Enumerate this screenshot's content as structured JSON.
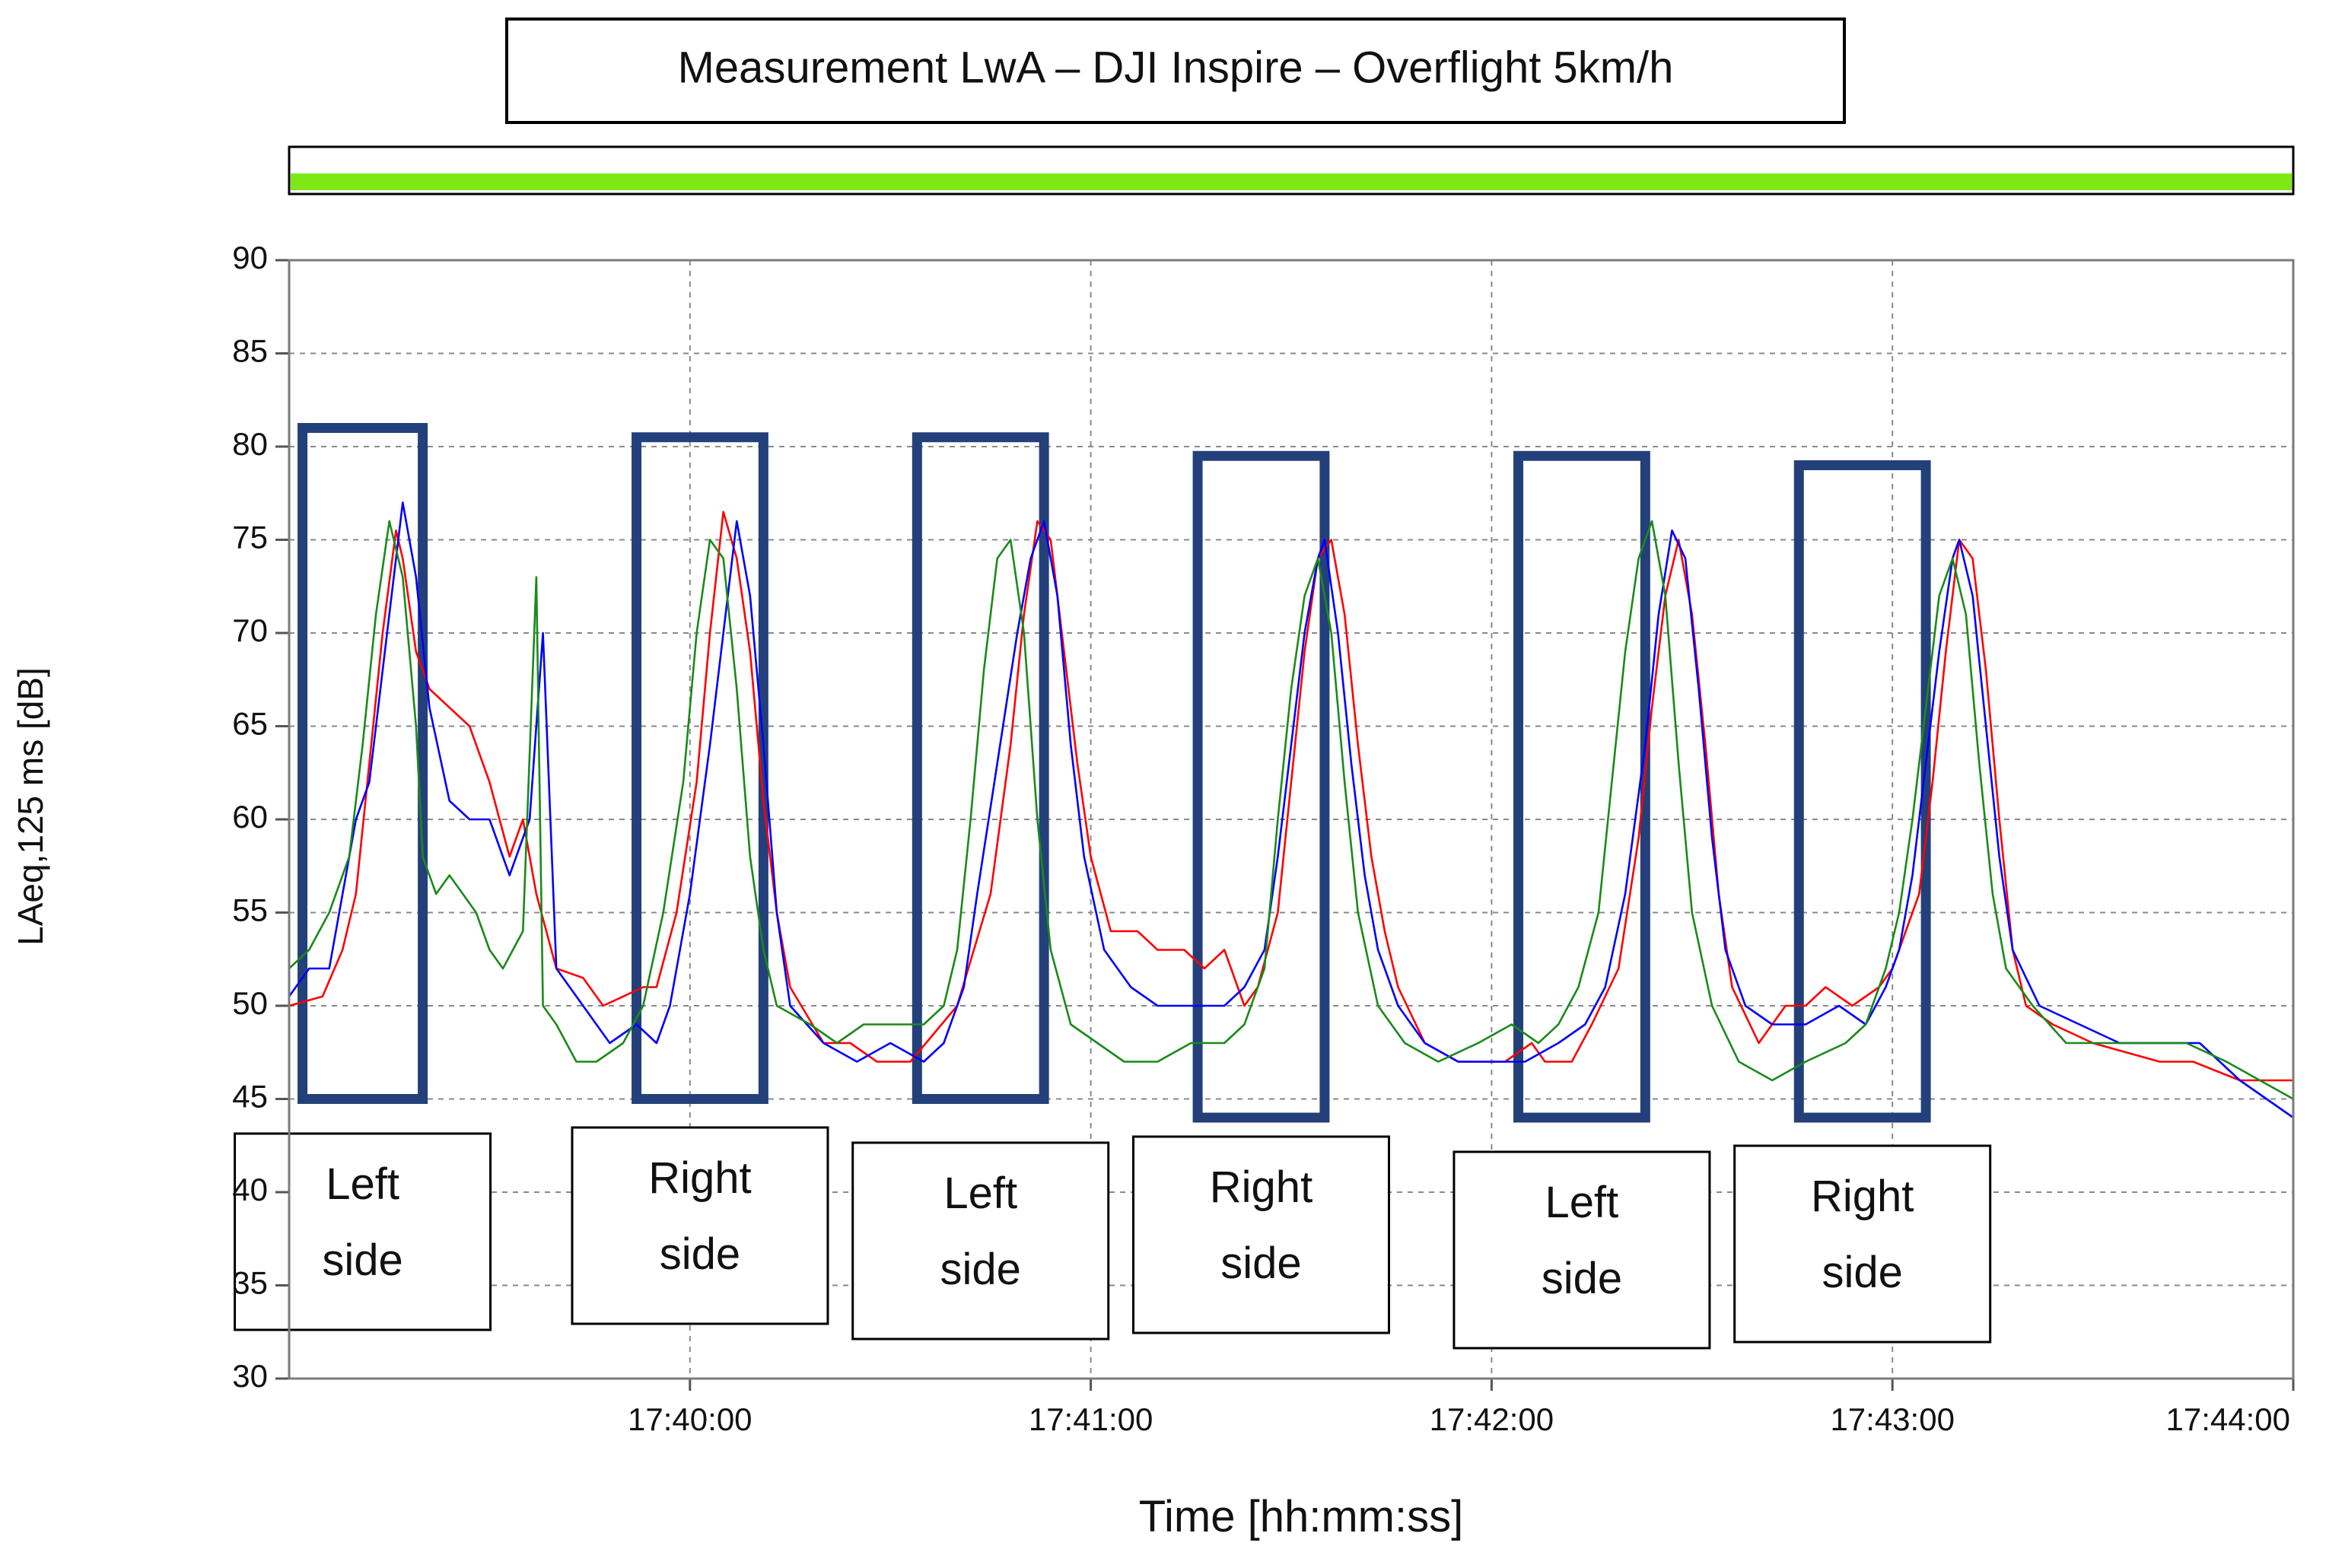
{
  "chart_data": {
    "type": "line",
    "title": "Measurement LwA – DJI Inspire – Overflight 5km/h",
    "xlabel": "Time [hh:mm:ss]",
    "ylabel": "LAeq,125 ms [dB]",
    "ylim": [
      30,
      90
    ],
    "xlim": [
      "17:39:00",
      "17:44:00"
    ],
    "x_ticks": [
      "17:40:00",
      "17:41:00",
      "17:42:00",
      "17:43:00",
      "17:44:00"
    ],
    "y_ticks": [
      30,
      35,
      40,
      45,
      50,
      55,
      60,
      65,
      70,
      75,
      80,
      85,
      90
    ],
    "grid": true,
    "status_bar": {
      "color": "#7ee817"
    },
    "series": [
      {
        "name": "red",
        "color": "#ff0000",
        "points": [
          [
            0,
            50
          ],
          [
            5,
            50.5
          ],
          [
            8,
            53
          ],
          [
            10,
            56
          ],
          [
            12,
            63
          ],
          [
            14,
            70
          ],
          [
            16,
            75.5
          ],
          [
            17,
            74
          ],
          [
            19,
            69
          ],
          [
            21,
            67
          ],
          [
            24,
            66
          ],
          [
            27,
            65
          ],
          [
            30,
            62
          ],
          [
            33,
            58
          ],
          [
            35,
            60
          ],
          [
            37,
            56
          ],
          [
            40,
            52
          ],
          [
            44,
            51.5
          ],
          [
            47,
            50
          ],
          [
            50,
            50.5
          ],
          [
            53,
            51
          ],
          [
            55,
            51
          ],
          [
            58,
            55
          ],
          [
            61,
            62
          ],
          [
            63,
            70
          ],
          [
            65,
            76.5
          ],
          [
            67,
            74
          ],
          [
            69,
            69
          ],
          [
            71,
            61
          ],
          [
            73,
            55
          ],
          [
            75,
            51
          ],
          [
            80,
            48
          ],
          [
            84,
            48
          ],
          [
            88,
            47
          ],
          [
            93,
            47
          ],
          [
            100,
            50
          ],
          [
            105,
            56
          ],
          [
            108,
            64
          ],
          [
            110,
            71
          ],
          [
            112,
            76
          ],
          [
            114,
            75
          ],
          [
            116,
            69
          ],
          [
            118,
            63
          ],
          [
            120,
            58
          ],
          [
            123,
            54
          ],
          [
            127,
            54
          ],
          [
            130,
            53
          ],
          [
            134,
            53
          ],
          [
            137,
            52
          ],
          [
            140,
            53
          ],
          [
            143,
            50
          ],
          [
            145,
            51
          ],
          [
            148,
            55
          ],
          [
            150,
            62
          ],
          [
            152,
            69
          ],
          [
            154,
            74
          ],
          [
            156,
            75
          ],
          [
            158,
            71
          ],
          [
            160,
            64
          ],
          [
            162,
            58
          ],
          [
            164,
            54
          ],
          [
            166,
            51
          ],
          [
            170,
            48
          ],
          [
            175,
            47
          ],
          [
            182,
            47
          ],
          [
            186,
            48
          ],
          [
            188,
            47
          ],
          [
            192,
            47
          ],
          [
            195,
            49
          ],
          [
            199,
            52
          ],
          [
            202,
            59
          ],
          [
            204,
            66
          ],
          [
            206,
            72
          ],
          [
            208,
            75
          ],
          [
            210,
            71
          ],
          [
            212,
            64
          ],
          [
            214,
            56
          ],
          [
            216,
            51
          ],
          [
            220,
            48
          ],
          [
            224,
            50
          ],
          [
            227,
            50
          ],
          [
            230,
            51
          ],
          [
            234,
            50
          ],
          [
            238,
            51
          ],
          [
            240,
            52
          ],
          [
            244,
            56
          ],
          [
            246,
            62
          ],
          [
            248,
            69
          ],
          [
            250,
            75
          ],
          [
            252,
            74
          ],
          [
            254,
            68
          ],
          [
            256,
            60
          ],
          [
            258,
            53
          ],
          [
            260,
            50
          ],
          [
            264,
            49
          ],
          [
            270,
            48
          ],
          [
            275,
            47.5
          ],
          [
            280,
            47
          ],
          [
            285,
            47
          ],
          [
            292,
            46
          ],
          [
            300,
            46
          ]
        ]
      },
      {
        "name": "blue",
        "color": "#0000ff",
        "points": [
          [
            0,
            50.5
          ],
          [
            3,
            52
          ],
          [
            6,
            52
          ],
          [
            10,
            60
          ],
          [
            12,
            62
          ],
          [
            14,
            68
          ],
          [
            16,
            74
          ],
          [
            17,
            77
          ],
          [
            19,
            73
          ],
          [
            21,
            66
          ],
          [
            24,
            61
          ],
          [
            27,
            60
          ],
          [
            30,
            60
          ],
          [
            33,
            57
          ],
          [
            36,
            60
          ],
          [
            38,
            70
          ],
          [
            40,
            52
          ],
          [
            44,
            50
          ],
          [
            48,
            48
          ],
          [
            52,
            49
          ],
          [
            55,
            48
          ],
          [
            57,
            50
          ],
          [
            60,
            56
          ],
          [
            63,
            64
          ],
          [
            65,
            70
          ],
          [
            67,
            76
          ],
          [
            69,
            72
          ],
          [
            71,
            64
          ],
          [
            73,
            55
          ],
          [
            75,
            50
          ],
          [
            80,
            48
          ],
          [
            85,
            47
          ],
          [
            90,
            48
          ],
          [
            95,
            47
          ],
          [
            98,
            48
          ],
          [
            101,
            51
          ],
          [
            103,
            56
          ],
          [
            106,
            63
          ],
          [
            109,
            70
          ],
          [
            111,
            74
          ],
          [
            113,
            76
          ],
          [
            115,
            72
          ],
          [
            117,
            64
          ],
          [
            119,
            58
          ],
          [
            122,
            53
          ],
          [
            126,
            51
          ],
          [
            130,
            50
          ],
          [
            135,
            50
          ],
          [
            140,
            50
          ],
          [
            143,
            51
          ],
          [
            146,
            53
          ],
          [
            148,
            58
          ],
          [
            150,
            64
          ],
          [
            152,
            70
          ],
          [
            154,
            74
          ],
          [
            155,
            75
          ],
          [
            157,
            70
          ],
          [
            159,
            63
          ],
          [
            161,
            57
          ],
          [
            163,
            53
          ],
          [
            166,
            50
          ],
          [
            170,
            48
          ],
          [
            175,
            47
          ],
          [
            180,
            47
          ],
          [
            185,
            47
          ],
          [
            190,
            48
          ],
          [
            194,
            49
          ],
          [
            197,
            51
          ],
          [
            200,
            56
          ],
          [
            203,
            64
          ],
          [
            205,
            71
          ],
          [
            207,
            75.5
          ],
          [
            209,
            74
          ],
          [
            211,
            67
          ],
          [
            213,
            59
          ],
          [
            215,
            53
          ],
          [
            218,
            50
          ],
          [
            222,
            49
          ],
          [
            227,
            49
          ],
          [
            232,
            50
          ],
          [
            236,
            49
          ],
          [
            239,
            51
          ],
          [
            241,
            53
          ],
          [
            243,
            57
          ],
          [
            245,
            63
          ],
          [
            247,
            69
          ],
          [
            249,
            74
          ],
          [
            250,
            75
          ],
          [
            252,
            72
          ],
          [
            254,
            65
          ],
          [
            256,
            58
          ],
          [
            258,
            53
          ],
          [
            262,
            50
          ],
          [
            268,
            49
          ],
          [
            274,
            48
          ],
          [
            280,
            48
          ],
          [
            286,
            48
          ],
          [
            292,
            46
          ],
          [
            300,
            44
          ]
        ]
      },
      {
        "name": "green",
        "color": "#1a8a1a",
        "points": [
          [
            0,
            52
          ],
          [
            3,
            53
          ],
          [
            6,
            55
          ],
          [
            9,
            58
          ],
          [
            11,
            64
          ],
          [
            13,
            71
          ],
          [
            15,
            76
          ],
          [
            17,
            73
          ],
          [
            19,
            65
          ],
          [
            20,
            58
          ],
          [
            22,
            56
          ],
          [
            24,
            57
          ],
          [
            26,
            56
          ],
          [
            28,
            55
          ],
          [
            30,
            53
          ],
          [
            32,
            52
          ],
          [
            35,
            54
          ],
          [
            37,
            73
          ],
          [
            38,
            50
          ],
          [
            40,
            49
          ],
          [
            43,
            47
          ],
          [
            46,
            47
          ],
          [
            50,
            48
          ],
          [
            53,
            50
          ],
          [
            56,
            55
          ],
          [
            59,
            62
          ],
          [
            61,
            70
          ],
          [
            63,
            75
          ],
          [
            65,
            74
          ],
          [
            67,
            67
          ],
          [
            69,
            58
          ],
          [
            71,
            53
          ],
          [
            73,
            50
          ],
          [
            78,
            49
          ],
          [
            82,
            48
          ],
          [
            86,
            49
          ],
          [
            90,
            49
          ],
          [
            95,
            49
          ],
          [
            98,
            50
          ],
          [
            100,
            53
          ],
          [
            102,
            60
          ],
          [
            104,
            68
          ],
          [
            106,
            74
          ],
          [
            108,
            75
          ],
          [
            110,
            70
          ],
          [
            112,
            60
          ],
          [
            114,
            53
          ],
          [
            117,
            49
          ],
          [
            121,
            48
          ],
          [
            125,
            47
          ],
          [
            130,
            47
          ],
          [
            135,
            48
          ],
          [
            140,
            48
          ],
          [
            143,
            49
          ],
          [
            146,
            52
          ],
          [
            148,
            60
          ],
          [
            150,
            67
          ],
          [
            152,
            72
          ],
          [
            154,
            74
          ],
          [
            156,
            70
          ],
          [
            158,
            62
          ],
          [
            160,
            55
          ],
          [
            163,
            50
          ],
          [
            167,
            48
          ],
          [
            172,
            47
          ],
          [
            178,
            48
          ],
          [
            183,
            49
          ],
          [
            187,
            48
          ],
          [
            190,
            49
          ],
          [
            193,
            51
          ],
          [
            196,
            55
          ],
          [
            198,
            62
          ],
          [
            200,
            69
          ],
          [
            202,
            74
          ],
          [
            204,
            76
          ],
          [
            206,
            72
          ],
          [
            208,
            63
          ],
          [
            210,
            55
          ],
          [
            213,
            50
          ],
          [
            217,
            47
          ],
          [
            222,
            46
          ],
          [
            227,
            47
          ],
          [
            233,
            48
          ],
          [
            236,
            49
          ],
          [
            239,
            52
          ],
          [
            241,
            55
          ],
          [
            243,
            60
          ],
          [
            245,
            66
          ],
          [
            247,
            72
          ],
          [
            249,
            74
          ],
          [
            251,
            71
          ],
          [
            253,
            63
          ],
          [
            255,
            56
          ],
          [
            257,
            52
          ],
          [
            261,
            50
          ],
          [
            266,
            48
          ],
          [
            272,
            48
          ],
          [
            278,
            48
          ],
          [
            284,
            48
          ],
          [
            290,
            47
          ],
          [
            295,
            46
          ],
          [
            300,
            45
          ]
        ]
      }
    ],
    "highlights": [
      {
        "start": 2,
        "end": 20,
        "top": 81,
        "bottom": 45,
        "label_lines": [
          "Left",
          "side"
        ]
      },
      {
        "start": 52,
        "end": 71,
        "top": 80.5,
        "bottom": 45,
        "label_lines": [
          "Right",
          "side"
        ]
      },
      {
        "start": 94,
        "end": 113,
        "top": 80.5,
        "bottom": 45,
        "label_lines": [
          "Left",
          "side"
        ]
      },
      {
        "start": 136,
        "end": 155,
        "top": 79.5,
        "bottom": 44,
        "label_lines": [
          "Right",
          "side"
        ]
      },
      {
        "start": 184,
        "end": 203,
        "top": 79.5,
        "bottom": 44,
        "label_lines": [
          "Left",
          "side"
        ]
      },
      {
        "start": 226,
        "end": 245,
        "top": 79,
        "bottom": 44,
        "label_lines": [
          "Right",
          "side"
        ]
      }
    ]
  }
}
